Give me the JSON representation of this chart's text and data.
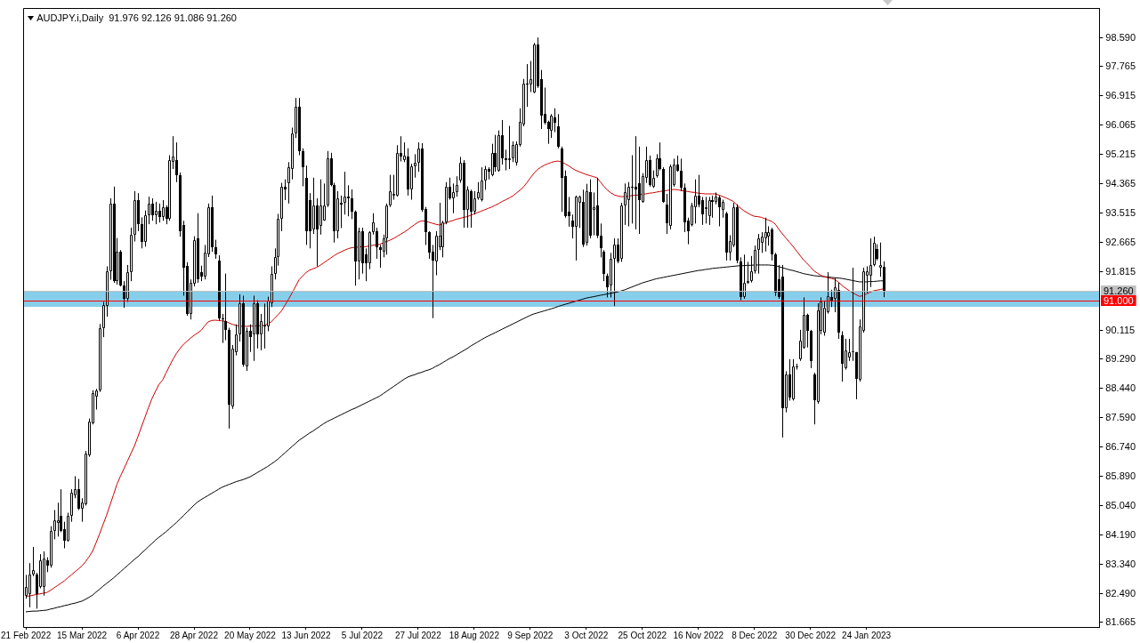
{
  "chart_data": {
    "type": "candlestick",
    "title": "AUDJPY.i,Daily  91.976 92.126 91.086 91.260",
    "categories": [
      "21 Feb 2022",
      null,
      null,
      null,
      null,
      null,
      null,
      null,
      null,
      null,
      null,
      null,
      null,
      null,
      null,
      null,
      "15 Mar 2022",
      null,
      null,
      null,
      null,
      null,
      null,
      null,
      null,
      null,
      null,
      null,
      null,
      null,
      null,
      null,
      "6 Apr 2022",
      null,
      null,
      null,
      null,
      null,
      null,
      null,
      null,
      null,
      null,
      null,
      null,
      null,
      null,
      null,
      "28 Apr 2022",
      null,
      null,
      null,
      null,
      null,
      null,
      null,
      null,
      null,
      null,
      null,
      null,
      null,
      null,
      null,
      "20 May 2022",
      null,
      null,
      null,
      null,
      null,
      null,
      null,
      null,
      null,
      null,
      null,
      null,
      null,
      null,
      null,
      "13 Jun 2022",
      null,
      null,
      null,
      null,
      null,
      null,
      null,
      null,
      null,
      null,
      null,
      null,
      null,
      null,
      null,
      "5 Jul 2022",
      null,
      null,
      null,
      null,
      null,
      null,
      null,
      null,
      null,
      null,
      null,
      null,
      null,
      null,
      null,
      "27 Jul 2022",
      null,
      null,
      null,
      null,
      null,
      null,
      null,
      null,
      null,
      null,
      null,
      null,
      null,
      null,
      null,
      "18 Aug 2022",
      null,
      null,
      null,
      null,
      null,
      null,
      null,
      null,
      null,
      null,
      null,
      null,
      null,
      null,
      null,
      "9 Sep 2022",
      null,
      null,
      null,
      null,
      null,
      null,
      null,
      null,
      null,
      null,
      null,
      null,
      null,
      null,
      null,
      "3 Oct 2022",
      null,
      null,
      null,
      null,
      null,
      null,
      null,
      null,
      null,
      null,
      null,
      null,
      null,
      null,
      null,
      "25 Oct 2022",
      null,
      null,
      null,
      null,
      null,
      null,
      null,
      null,
      null,
      null,
      null,
      null,
      null,
      null,
      null,
      "16 Nov 2022",
      null,
      null,
      null,
      null,
      null,
      null,
      null,
      null,
      null,
      null,
      null,
      null,
      null,
      null,
      null,
      "8 Dec 2022",
      null,
      null,
      null,
      null,
      null,
      null,
      null,
      null,
      null,
      null,
      null,
      null,
      null,
      null,
      null,
      "30 Dec 2022",
      null,
      null,
      null,
      null,
      null,
      null,
      null,
      null,
      null,
      null,
      null,
      null,
      null,
      null,
      null,
      "24 Jan 2023",
      null,
      null,
      null,
      null,
      null,
      null,
      null,
      null,
      null,
      null,
      null,
      null,
      null,
      null,
      null,
      null,
      null,
      null,
      null,
      null,
      null,
      null,
      null,
      null,
      null,
      null,
      null,
      null,
      null,
      null,
      null,
      null,
      null,
      null,
      null,
      null,
      null,
      null,
      null,
      null,
      null,
      null,
      null,
      null,
      null,
      null,
      null,
      null,
      null,
      null,
      null,
      null,
      null,
      null,
      null,
      null,
      null,
      null,
      null,
      null,
      null,
      null,
      null,
      null,
      null,
      null
    ],
    "ohlc": [
      [
        82.44,
        83.04,
        82.35,
        82.7
      ],
      [
        82.48,
        83.38,
        82.1,
        83.04
      ],
      [
        83.04,
        83.85,
        83.0,
        83.17
      ],
      [
        83.04,
        83.1,
        82.06,
        82.48
      ],
      [
        82.7,
        83.64,
        82.65,
        83.47
      ],
      [
        82.7,
        83.72,
        82.44,
        83.51
      ],
      [
        83.47,
        83.55,
        83.12,
        83.3
      ],
      [
        83.3,
        84.45,
        83.25,
        84.32
      ],
      [
        84.32,
        84.92,
        84.07,
        84.62
      ],
      [
        84.54,
        85.13,
        84.15,
        84.62
      ],
      [
        84.75,
        85.52,
        84.28,
        84.32
      ],
      [
        84.37,
        84.58,
        83.81,
        84.02
      ],
      [
        84.02,
        84.84,
        84.0,
        84.75
      ],
      [
        84.75,
        85.52,
        84.58,
        85.43
      ],
      [
        85.35,
        85.9,
        85.26,
        85.52
      ],
      [
        85.52,
        85.82,
        84.92,
        84.96
      ],
      [
        84.96,
        85.26,
        84.58,
        85.13
      ],
      [
        85.09,
        86.63,
        85.05,
        86.55
      ],
      [
        86.5,
        87.57,
        86.46,
        87.49
      ],
      [
        87.44,
        88.39,
        87.4,
        88.3
      ],
      [
        88.21,
        88.43,
        87.83,
        88.39
      ],
      [
        88.39,
        90.31,
        88.34,
        90.18
      ],
      [
        90.18,
        90.95,
        89.93,
        90.87
      ],
      [
        90.82,
        91.98,
        90.52,
        91.85
      ],
      [
        91.85,
        93.95,
        91.59,
        93.8
      ],
      [
        93.8,
        94.29,
        91.5,
        91.55
      ],
      [
        91.55,
        92.8,
        91.45,
        92.4
      ],
      [
        92.4,
        92.45,
        91.4,
        91.42
      ],
      [
        91.42,
        91.55,
        90.78,
        91.04
      ],
      [
        91.04,
        92.02,
        90.95,
        91.81
      ],
      [
        91.81,
        93.1,
        91.55,
        92.9
      ],
      [
        92.9,
        94.16,
        92.7,
        93.9
      ],
      [
        93.9,
        94.1,
        93.0,
        93.2
      ],
      [
        93.2,
        93.4,
        92.5,
        92.7
      ],
      [
        92.7,
        93.6,
        92.55,
        93.45
      ],
      [
        93.45,
        94.0,
        93.2,
        93.8
      ],
      [
        93.8,
        93.95,
        93.3,
        93.45
      ],
      [
        93.45,
        93.85,
        93.2,
        93.6
      ],
      [
        93.6,
        93.8,
        93.25,
        93.4
      ],
      [
        93.4,
        93.9,
        93.3,
        93.7
      ],
      [
        93.7,
        93.75,
        93.2,
        93.35
      ],
      [
        93.35,
        95.2,
        93.3,
        95.06
      ],
      [
        95.0,
        95.75,
        94.8,
        95.15
      ],
      [
        95.06,
        95.57,
        94.42,
        94.63
      ],
      [
        94.63,
        94.7,
        92.84,
        93.01
      ],
      [
        93.18,
        93.3,
        91.13,
        91.94
      ],
      [
        91.98,
        92.1,
        90.55,
        90.61
      ],
      [
        90.61,
        91.6,
        90.44,
        91.51
      ],
      [
        91.47,
        92.85,
        91.4,
        92.75
      ],
      [
        92.79,
        93.52,
        91.5,
        91.6
      ],
      [
        91.81,
        92.0,
        91.55,
        91.68
      ],
      [
        91.68,
        92.6,
        91.6,
        92.37
      ],
      [
        92.32,
        93.8,
        92.25,
        93.69
      ],
      [
        93.69,
        94.03,
        92.4,
        92.54
      ],
      [
        92.54,
        92.75,
        92.2,
        92.32
      ],
      [
        92.15,
        92.3,
        90.4,
        90.48
      ],
      [
        90.48,
        90.6,
        89.76,
        90.44
      ],
      [
        90.4,
        91.77,
        89.84,
        90.14
      ],
      [
        90.14,
        90.2,
        87.28,
        87.96
      ],
      [
        87.92,
        89.7,
        87.85,
        89.59
      ],
      [
        89.5,
        90.3,
        89.4,
        90.01
      ],
      [
        90.01,
        91.17,
        89.8,
        90.91
      ],
      [
        90.91,
        91.13,
        89.07,
        89.12
      ],
      [
        89.07,
        90.2,
        88.95,
        90.1
      ],
      [
        90.1,
        90.3,
        89.5,
        89.93
      ],
      [
        90.01,
        91.13,
        89.24,
        90.91
      ],
      [
        90.91,
        91.0,
        89.6,
        90.01
      ],
      [
        90.01,
        90.6,
        89.55,
        90.4
      ],
      [
        90.27,
        90.9,
        89.6,
        90.23
      ],
      [
        90.23,
        91.1,
        90.1,
        91.0
      ],
      [
        90.91,
        91.98,
        90.8,
        91.77
      ],
      [
        91.77,
        92.5,
        91.6,
        92.24
      ],
      [
        92.24,
        93.5,
        92.0,
        93.35
      ],
      [
        93.35,
        94.4,
        93.0,
        94.29
      ],
      [
        94.29,
        94.5,
        93.9,
        94.21
      ],
      [
        94.38,
        95.0,
        93.8,
        94.85
      ],
      [
        94.8,
        96.0,
        94.5,
        95.83
      ],
      [
        95.83,
        96.86,
        95.7,
        96.6
      ],
      [
        96.6,
        96.86,
        95.2,
        95.32
      ],
      [
        95.32,
        95.4,
        94.3,
        94.85
      ],
      [
        94.55,
        94.9,
        92.6,
        93.01
      ],
      [
        93.91,
        94.1,
        92.5,
        93.01
      ],
      [
        93.05,
        94.55,
        92.92,
        93.74
      ],
      [
        93.74,
        93.95,
        91.98,
        93.05
      ],
      [
        93.14,
        94.5,
        92.9,
        93.74
      ],
      [
        93.31,
        94.38,
        93.3,
        93.74
      ],
      [
        93.74,
        95.32,
        93.7,
        95.1
      ],
      [
        95.1,
        95.27,
        94.3,
        94.33
      ],
      [
        94.33,
        94.4,
        92.67,
        93.01
      ],
      [
        93.01,
        94.16,
        92.79,
        93.95
      ],
      [
        93.82,
        94.03,
        93.09,
        93.78
      ],
      [
        93.82,
        94.72,
        93.48,
        93.99
      ],
      [
        93.99,
        94.33,
        93.43,
        93.95
      ],
      [
        93.95,
        94.21,
        93.35,
        93.56
      ],
      [
        93.56,
        93.6,
        91.42,
        92.11
      ],
      [
        92.11,
        93.1,
        91.6,
        93.01
      ],
      [
        93.01,
        93.1,
        91.77,
        92.07
      ],
      [
        92.32,
        92.5,
        91.55,
        92.07
      ],
      [
        92.07,
        93.0,
        91.9,
        92.96
      ],
      [
        92.96,
        93.52,
        92.9,
        93.26
      ],
      [
        93.01,
        93.1,
        92.2,
        92.54
      ],
      [
        92.54,
        92.6,
        91.94,
        92.45
      ],
      [
        92.41,
        92.9,
        92.24,
        92.79
      ],
      [
        92.79,
        93.8,
        92.32,
        93.74
      ],
      [
        93.74,
        94.63,
        93.7,
        94.16
      ],
      [
        94.03,
        94.63,
        93.91,
        94.08
      ],
      [
        94.03,
        95.49,
        94.0,
        95.27
      ],
      [
        95.27,
        95.75,
        95.02,
        95.15
      ],
      [
        95.06,
        95.57,
        95.0,
        95.19
      ],
      [
        95.15,
        95.4,
        94.03,
        94.21
      ],
      [
        94.21,
        94.95,
        93.91,
        94.89
      ],
      [
        94.89,
        95.23,
        94.55,
        94.99
      ],
      [
        94.99,
        95.57,
        94.72,
        95.4
      ],
      [
        95.4,
        95.55,
        93.56,
        93.61
      ],
      [
        93.65,
        93.7,
        92.6,
        92.96
      ],
      [
        92.96,
        93.0,
        92.2,
        92.37
      ],
      [
        92.41,
        92.6,
        90.48,
        92.15
      ],
      [
        92.11,
        93.0,
        91.72,
        92.88
      ],
      [
        92.54,
        93.82,
        92.45,
        92.88
      ],
      [
        92.54,
        93.3,
        92.24,
        93.26
      ],
      [
        93.26,
        94.42,
        93.2,
        94.29
      ],
      [
        94.29,
        94.55,
        93.91,
        93.95
      ],
      [
        93.95,
        94.38,
        93.52,
        94.12
      ],
      [
        94.12,
        94.59,
        94.0,
        94.33
      ],
      [
        94.46,
        95.15,
        94.4,
        94.98
      ],
      [
        94.98,
        95.06,
        93.1,
        93.61
      ],
      [
        93.61,
        94.3,
        93.1,
        94.21
      ],
      [
        94.16,
        94.2,
        93.1,
        93.57
      ],
      [
        93.57,
        94.16,
        93.48,
        93.95
      ],
      [
        93.95,
        94.42,
        93.91,
        94.12
      ],
      [
        93.91,
        94.85,
        93.86,
        94.46
      ],
      [
        94.46,
        94.89,
        94.2,
        94.8
      ],
      [
        94.8,
        94.85,
        94.5,
        94.72
      ],
      [
        94.63,
        95.53,
        94.59,
        95.27
      ],
      [
        95.27,
        95.79,
        94.72,
        94.85
      ],
      [
        94.76,
        95.92,
        94.72,
        95.79
      ],
      [
        95.79,
        96.22,
        94.93,
        95.1
      ],
      [
        95.1,
        95.36,
        94.76,
        95.06
      ],
      [
        95.06,
        96.05,
        94.8,
        95.1
      ],
      [
        95.1,
        95.6,
        95.0,
        95.49
      ],
      [
        94.97,
        95.6,
        94.9,
        95.53
      ],
      [
        95.49,
        96.56,
        95.45,
        96.17
      ],
      [
        96.09,
        97.41,
        96.04,
        97.28
      ],
      [
        97.28,
        97.84,
        96.6,
        97.24
      ],
      [
        97.24,
        97.93,
        97.03,
        97.41
      ],
      [
        97.03,
        98.45,
        97.0,
        98.4
      ],
      [
        98.4,
        98.61,
        97.15,
        97.2
      ],
      [
        97.41,
        97.67,
        95.96,
        96.34
      ],
      [
        96.39,
        97.16,
        96.09,
        96.13
      ],
      [
        96.17,
        96.2,
        95.53,
        95.96
      ],
      [
        95.92,
        96.39,
        95.7,
        96.34
      ],
      [
        96.3,
        96.56,
        95.87,
        96.13
      ],
      [
        96.04,
        96.39,
        95.4,
        95.45
      ],
      [
        95.4,
        95.45,
        93.56,
        94.55
      ],
      [
        94.59,
        94.76,
        93.39,
        93.44
      ],
      [
        93.57,
        93.99,
        93.13,
        93.44
      ],
      [
        93.31,
        93.48,
        92.79,
        93.13
      ],
      [
        93.13,
        94.03,
        92.15,
        93.99
      ],
      [
        93.82,
        94.03,
        93.09,
        93.99
      ],
      [
        93.86,
        94.2,
        92.54,
        92.62
      ],
      [
        92.67,
        94.37,
        92.58,
        94.16
      ],
      [
        94.12,
        94.5,
        92.79,
        92.88
      ],
      [
        93.61,
        94.12,
        92.88,
        93.7
      ],
      [
        93.74,
        94.55,
        92.8,
        92.88
      ],
      [
        92.88,
        93.22,
        92.24,
        92.5
      ],
      [
        92.41,
        92.45,
        91.55,
        91.77
      ],
      [
        91.72,
        91.77,
        91.08,
        91.38
      ],
      [
        91.42,
        92.37,
        91.08,
        92.2
      ],
      [
        92.2,
        92.79,
        90.83,
        92.62
      ],
      [
        92.62,
        92.79,
        92.07,
        92.11
      ],
      [
        92.2,
        93.82,
        92.11,
        93.74
      ],
      [
        93.74,
        94.38,
        93.18,
        94.12
      ],
      [
        93.91,
        94.42,
        93.14,
        94.29
      ],
      [
        94.29,
        95.2,
        93.22,
        94.25
      ],
      [
        94.29,
        95.75,
        93.05,
        94.21
      ],
      [
        94.38,
        95.45,
        92.92,
        93.91
      ],
      [
        93.86,
        94.68,
        93.82,
        94.59
      ],
      [
        94.55,
        95.45,
        94.4,
        95.06
      ],
      [
        95.06,
        95.19,
        94.29,
        94.33
      ],
      [
        94.29,
        94.76,
        94.25,
        94.55
      ],
      [
        94.59,
        95.23,
        94.55,
        95.1
      ],
      [
        95.1,
        95.57,
        94.76,
        94.8
      ],
      [
        94.8,
        94.85,
        93.82,
        93.86
      ],
      [
        93.78,
        94.08,
        92.92,
        93.22
      ],
      [
        93.14,
        94.93,
        93.05,
        94.89
      ],
      [
        94.33,
        95.1,
        94.29,
        94.93
      ],
      [
        94.93,
        95.19,
        94.72,
        94.76
      ],
      [
        94.76,
        95.1,
        94.16,
        94.25
      ],
      [
        94.25,
        94.38,
        92.97,
        93.26
      ],
      [
        93.31,
        93.39,
        92.62,
        93.01
      ],
      [
        93.18,
        93.82,
        93.14,
        93.74
      ],
      [
        93.69,
        94.5,
        93.22,
        94.03
      ],
      [
        94.03,
        94.63,
        93.69,
        93.78
      ],
      [
        93.91,
        93.99,
        93.18,
        93.48
      ],
      [
        93.65,
        93.99,
        93.22,
        93.69
      ],
      [
        93.44,
        93.99,
        93.18,
        93.91
      ],
      [
        93.91,
        94.03,
        93.39,
        93.86
      ],
      [
        93.86,
        94.12,
        93.78,
        93.99
      ],
      [
        93.97,
        94.03,
        93.14,
        93.69
      ],
      [
        93.61,
        93.91,
        93.39,
        93.86
      ],
      [
        93.52,
        93.56,
        92.15,
        92.37
      ],
      [
        92.37,
        92.88,
        92.15,
        92.71
      ],
      [
        92.58,
        93.82,
        92.54,
        93.69
      ],
      [
        93.69,
        93.78,
        92.07,
        92.15
      ],
      [
        92.11,
        92.24,
        91.0,
        91.08
      ],
      [
        91.08,
        92.32,
        91.04,
        91.51
      ],
      [
        91.51,
        92.11,
        91.47,
        91.55
      ],
      [
        91.55,
        92.28,
        91.51,
        91.85
      ],
      [
        91.85,
        92.58,
        91.77,
        92.45
      ],
      [
        92.45,
        92.92,
        91.77,
        92.79
      ],
      [
        92.67,
        92.97,
        92.37,
        92.84
      ],
      [
        92.79,
        93.39,
        92.41,
        92.97
      ],
      [
        92.84,
        93.14,
        92.58,
        92.97
      ],
      [
        93.05,
        93.1,
        92.15,
        92.32
      ],
      [
        92.32,
        92.37,
        91.12,
        91.21
      ],
      [
        91.6,
        92.02,
        91.04,
        91.08
      ],
      [
        91.68,
        92.02,
        87.02,
        87.87
      ],
      [
        87.87,
        88.94,
        87.75,
        88.86
      ],
      [
        88.86,
        89.29,
        88.09,
        88.17
      ],
      [
        88.13,
        89.29,
        88.09,
        89.07
      ],
      [
        89.07,
        89.16,
        88.99,
        89.09
      ],
      [
        89.29,
        90.14,
        89.24,
        89.84
      ],
      [
        89.63,
        91.08,
        89.59,
        90.57
      ],
      [
        90.57,
        90.61,
        89.63,
        90.1
      ],
      [
        90.1,
        90.14,
        89.03,
        89.24
      ],
      [
        88.86,
        88.9,
        87.4,
        88.09
      ],
      [
        88.05,
        90.91,
        88.0,
        90.7
      ],
      [
        90.1,
        91.08,
        90.01,
        90.95
      ],
      [
        90.06,
        90.99,
        89.97,
        90.78
      ],
      [
        90.65,
        91.81,
        90.61,
        91.12
      ],
      [
        91.08,
        91.3,
        90.8,
        91.0
      ],
      [
        91.04,
        91.64,
        90.65,
        91.38
      ],
      [
        91.29,
        91.51,
        89.88,
        90.06
      ],
      [
        89.97,
        90.1,
        88.64,
        89.16
      ],
      [
        89.03,
        89.88,
        88.99,
        89.54
      ],
      [
        89.33,
        89.88,
        89.24,
        89.5
      ],
      [
        89.5,
        91.94,
        89.24,
        89.52
      ],
      [
        89.5,
        89.5,
        88.13,
        88.73
      ],
      [
        88.69,
        90.44,
        88.64,
        90.23
      ],
      [
        90.1,
        91.94,
        90.06,
        91.85
      ],
      [
        91.72,
        91.98,
        91.21,
        91.85
      ],
      [
        91.72,
        92.79,
        91.38,
        92.02
      ],
      [
        92.02,
        92.84,
        91.98,
        92.67
      ],
      [
        92.49,
        92.62,
        92.15,
        92.19
      ],
      [
        91.94,
        92.67,
        91.68,
        92.02
      ],
      [
        91.976,
        92.126,
        91.086,
        91.26
      ],
      null,
      null,
      null,
      null,
      null,
      null,
      null,
      null,
      null,
      null,
      null,
      null,
      null,
      null,
      null,
      null,
      null,
      null,
      null,
      null,
      null,
      null,
      null,
      null,
      null,
      null,
      null,
      null,
      null,
      null,
      null,
      null,
      null,
      null,
      null,
      null,
      null,
      null,
      null,
      null,
      null,
      null,
      null,
      null,
      null,
      null,
      null,
      null,
      null,
      null,
      null,
      null,
      null,
      null,
      null,
      null,
      null,
      null,
      null,
      null,
      null
    ],
    "series": [
      {
        "type": "line",
        "color": "#cc0000",
        "values": [
          82.41,
          82.43,
          82.45,
          82.47,
          82.49,
          82.51,
          82.53,
          82.59,
          82.66,
          82.73,
          82.8,
          82.87,
          82.96,
          83.04,
          83.13,
          83.21,
          83.3,
          83.42,
          83.56,
          83.72,
          83.96,
          84.22,
          84.49,
          84.76,
          85.06,
          85.36,
          85.67,
          85.9,
          86.12,
          86.34,
          86.56,
          86.78,
          87.05,
          87.33,
          87.61,
          87.89,
          88.15,
          88.36,
          88.56,
          88.68,
          88.89,
          89.09,
          89.29,
          89.46,
          89.6,
          89.72,
          89.81,
          89.9,
          89.98,
          90.05,
          90.12,
          90.25,
          90.37,
          90.41,
          90.42,
          90.41,
          90.4,
          90.39,
          90.34,
          90.3,
          90.27,
          90.25,
          90.24,
          90.24,
          90.25,
          90.25,
          90.26,
          90.26,
          90.27,
          90.31,
          90.37,
          90.47,
          90.58,
          90.69,
          90.86,
          91.03,
          91.21,
          91.4,
          91.59,
          91.7,
          91.8,
          91.87,
          91.91,
          91.95,
          92.01,
          92.08,
          92.15,
          92.22,
          92.29,
          92.35,
          92.4,
          92.45,
          92.49,
          92.52,
          92.53,
          92.54,
          92.55,
          92.55,
          92.57,
          92.59,
          92.6,
          92.62,
          92.66,
          92.7,
          92.74,
          92.79,
          92.85,
          92.91,
          92.97,
          93.04,
          93.12,
          93.19,
          93.26,
          93.3,
          93.29,
          93.26,
          93.23,
          93.2,
          93.18,
          93.21,
          93.24,
          93.28,
          93.31,
          93.35,
          93.37,
          93.4,
          93.42,
          93.46,
          93.5,
          93.54,
          93.58,
          93.62,
          93.66,
          93.7,
          93.75,
          93.8,
          93.86,
          93.91,
          93.96,
          94.02,
          94.1,
          94.18,
          94.27,
          94.4,
          94.54,
          94.67,
          94.78,
          94.85,
          94.91,
          94.95,
          94.99,
          95.02,
          95.03,
          95.0,
          94.95,
          94.89,
          94.82,
          94.76,
          94.72,
          94.68,
          94.64,
          94.61,
          94.58,
          94.55,
          94.43,
          94.3,
          94.19,
          94.11,
          94.05,
          94.02,
          94.0,
          94.0,
          94.01,
          94.03,
          94.04,
          94.05,
          94.07,
          94.08,
          94.1,
          94.11,
          94.13,
          94.15,
          94.16,
          94.18,
          94.19,
          94.21,
          94.2,
          94.18,
          94.16,
          94.15,
          94.13,
          94.12,
          94.1,
          94.09,
          94.08,
          94.08,
          94.08,
          94.08,
          94.04,
          94.0,
          93.96,
          93.91,
          93.86,
          93.76,
          93.67,
          93.59,
          93.53,
          93.47,
          93.43,
          93.42,
          93.4,
          93.36,
          93.32,
          93.28,
          93.2,
          93.05,
          92.92,
          92.8,
          92.68,
          92.56,
          92.43,
          92.3,
          92.17,
          92.07,
          91.96,
          91.85,
          91.78,
          91.72,
          91.68,
          91.65,
          91.63,
          91.6,
          91.52,
          91.43,
          91.35,
          91.28,
          91.22,
          91.16,
          91.11,
          91.13,
          91.18,
          91.23,
          91.27,
          91.29,
          91.31,
          91.33,
          null,
          null,
          null,
          null,
          null,
          null,
          null,
          null,
          null,
          null,
          null,
          null,
          null,
          null,
          null,
          null,
          null,
          null,
          null,
          null,
          null,
          null,
          null,
          null,
          null,
          null,
          null,
          null,
          null,
          null,
          null,
          null,
          null,
          null,
          null,
          null,
          null,
          null,
          null,
          null,
          null,
          null,
          null,
          null,
          null,
          null,
          null,
          null,
          null,
          null,
          null,
          null,
          null,
          null,
          null,
          null,
          null,
          null,
          null,
          null,
          null
        ]
      },
      {
        "type": "line",
        "color": "#000000",
        "values": [
          81.97,
          81.98,
          81.99,
          81.99,
          82.0,
          82.01,
          82.02,
          82.05,
          82.07,
          82.1,
          82.12,
          82.15,
          82.17,
          82.2,
          82.22,
          82.25,
          82.28,
          82.33,
          82.39,
          82.45,
          82.54,
          82.62,
          82.71,
          82.79,
          82.87,
          82.95,
          83.04,
          83.13,
          83.22,
          83.31,
          83.4,
          83.49,
          83.57,
          83.67,
          83.76,
          83.86,
          83.95,
          84.05,
          84.13,
          84.21,
          84.29,
          84.38,
          84.47,
          84.56,
          84.66,
          84.76,
          84.86,
          84.96,
          85.06,
          85.15,
          85.22,
          85.28,
          85.34,
          85.4,
          85.46,
          85.52,
          85.58,
          85.62,
          85.66,
          85.7,
          85.74,
          85.77,
          85.8,
          85.84,
          85.88,
          85.94,
          86.0,
          86.06,
          86.12,
          86.18,
          86.25,
          86.32,
          86.4,
          86.49,
          86.58,
          86.67,
          86.76,
          86.85,
          86.94,
          87.01,
          87.08,
          87.15,
          87.21,
          87.28,
          87.35,
          87.42,
          87.48,
          87.53,
          87.58,
          87.63,
          87.68,
          87.73,
          87.78,
          87.83,
          87.87,
          87.92,
          87.97,
          88.02,
          88.07,
          88.12,
          88.17,
          88.22,
          88.29,
          88.36,
          88.43,
          88.5,
          88.57,
          88.64,
          88.71,
          88.77,
          88.81,
          88.84,
          88.88,
          88.91,
          88.95,
          88.98,
          89.02,
          89.08,
          89.13,
          89.19,
          89.25,
          89.31,
          89.36,
          89.42,
          89.48,
          89.54,
          89.6,
          89.67,
          89.73,
          89.79,
          89.85,
          89.91,
          89.96,
          90.01,
          90.06,
          90.11,
          90.16,
          90.21,
          90.26,
          90.31,
          90.36,
          90.41,
          90.46,
          90.51,
          90.56,
          90.6,
          90.63,
          90.66,
          90.69,
          90.72,
          90.75,
          90.78,
          90.82,
          90.85,
          90.88,
          90.91,
          90.94,
          90.97,
          91.0,
          91.03,
          91.06,
          91.08,
          91.1,
          91.12,
          91.14,
          91.16,
          91.18,
          91.2,
          91.22,
          91.24,
          91.27,
          91.3,
          91.34,
          91.38,
          91.42,
          91.46,
          91.5,
          91.53,
          91.56,
          91.59,
          91.62,
          91.64,
          91.66,
          91.68,
          91.7,
          91.72,
          91.74,
          91.76,
          91.78,
          91.8,
          91.82,
          91.84,
          91.86,
          91.87,
          91.89,
          91.9,
          91.92,
          91.93,
          91.94,
          91.95,
          91.96,
          91.97,
          91.98,
          91.99,
          92.0,
          92.0,
          92.01,
          92.01,
          92.02,
          92.02,
          92.02,
          92.02,
          92.02,
          92.01,
          92.0,
          91.97,
          91.94,
          91.91,
          91.88,
          91.86,
          91.83,
          91.8,
          91.77,
          91.75,
          91.73,
          91.71,
          91.7,
          91.69,
          91.68,
          91.67,
          91.66,
          91.65,
          91.64,
          91.63,
          91.61,
          91.59,
          91.57,
          91.55,
          91.53,
          91.53,
          91.53,
          91.54,
          91.54,
          91.55,
          91.56,
          91.56,
          null,
          null,
          null,
          null,
          null,
          null,
          null,
          null,
          null,
          null,
          null,
          null,
          null,
          null,
          null,
          null,
          null,
          null,
          null,
          null,
          null,
          null,
          null,
          null,
          null,
          null,
          null,
          null,
          null,
          null,
          null,
          null,
          null,
          null,
          null,
          null,
          null,
          null,
          null,
          null,
          null,
          null,
          null,
          null,
          null,
          null,
          null,
          null,
          null,
          null,
          null,
          null,
          null,
          null,
          null,
          null,
          null,
          null,
          null,
          null,
          null
        ]
      }
    ],
    "ylim": [
      81.53,
      99.45
    ],
    "yticks": [
      {
        "value": 98.59,
        "label": "98.590"
      },
      {
        "value": 97.765,
        "label": "97.765"
      },
      {
        "value": 96.915,
        "label": "96.915"
      },
      {
        "value": 96.065,
        "label": "96.065"
      },
      {
        "value": 95.215,
        "label": "95.215"
      },
      {
        "value": 94.365,
        "label": "94.365"
      },
      {
        "value": 93.515,
        "label": "93.515"
      },
      {
        "value": 92.665,
        "label": "92.665"
      },
      {
        "value": 91.815,
        "label": "91.815"
      },
      {
        "value": 90.115,
        "label": "90.115"
      },
      {
        "value": 89.29,
        "label": "89.290"
      },
      {
        "value": 88.44,
        "label": "88.440"
      },
      {
        "value": 87.59,
        "label": "87.590"
      },
      {
        "value": 86.74,
        "label": "86.740"
      },
      {
        "value": 85.89,
        "label": "85.890"
      },
      {
        "value": 85.04,
        "label": "85.040"
      },
      {
        "value": 84.19,
        "label": "84.190"
      },
      {
        "value": 83.34,
        "label": "83.340"
      },
      {
        "value": 82.49,
        "label": "82.490"
      },
      {
        "value": 81.665,
        "label": "81.665"
      }
    ],
    "ref_lines": [
      {
        "axis": "y",
        "value": 91.26,
        "label": "91.260",
        "color": "#c0c0c0"
      },
      {
        "axis": "y",
        "value": 91.0,
        "label": "91.000",
        "color": "#ff0000"
      }
    ],
    "bands": [
      {
        "axis": "y",
        "from": 90.81,
        "to": 91.25,
        "color": "#87ceeb"
      }
    ]
  }
}
